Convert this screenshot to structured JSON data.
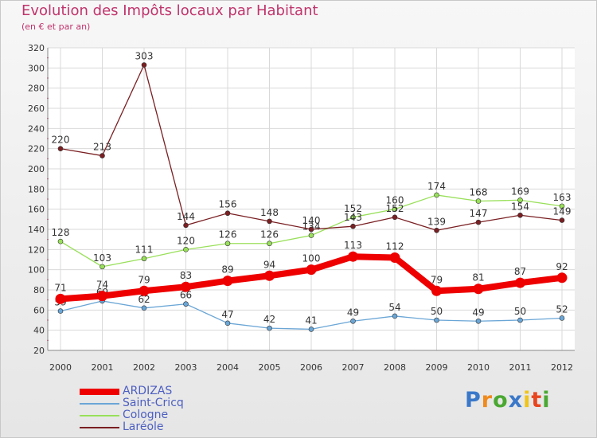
{
  "chart_data": {
    "type": "line",
    "title": "Evolution des Impôts locaux par Habitant",
    "subtitle": "(en € et par an)",
    "x": [
      "2000",
      "2001",
      "2002",
      "2003",
      "2004",
      "2005",
      "2006",
      "2007",
      "2008",
      "2009",
      "2010",
      "2011",
      "2012"
    ],
    "ylim": [
      20,
      320
    ],
    "yticks": [
      20,
      40,
      60,
      80,
      100,
      120,
      140,
      160,
      180,
      200,
      220,
      240,
      260,
      280,
      300,
      320
    ],
    "grid": true,
    "legend_position": "bottom-left",
    "series": [
      {
        "name": "ARDIZAS",
        "color": "#ee0000",
        "emphasis": true,
        "values": [
          71,
          74,
          79,
          83,
          89,
          94,
          100,
          113,
          112,
          79,
          81,
          87,
          92
        ]
      },
      {
        "name": "Saint-Cricq",
        "color": "#6aa6d6",
        "values": [
          59,
          69,
          62,
          66,
          47,
          42,
          41,
          49,
          54,
          50,
          49,
          50,
          52
        ]
      },
      {
        "name": "Cologne",
        "color": "#99e05a",
        "values": [
          128,
          103,
          111,
          120,
          126,
          126,
          134,
          152,
          160,
          174,
          168,
          169,
          163
        ]
      },
      {
        "name": "Laréole",
        "color": "#7a1f22",
        "values": [
          220,
          213,
          303,
          144,
          156,
          148,
          140,
          143,
          152,
          139,
          147,
          154,
          149
        ]
      }
    ]
  },
  "logo": {
    "letters": [
      "P",
      "r",
      "o",
      "x",
      "i",
      "t",
      "i"
    ],
    "colors": [
      "#3a78c9",
      "#f08a1c",
      "#4aa832",
      "#3a78c9",
      "#f0c419",
      "#e8451f",
      "#4aa832"
    ]
  }
}
